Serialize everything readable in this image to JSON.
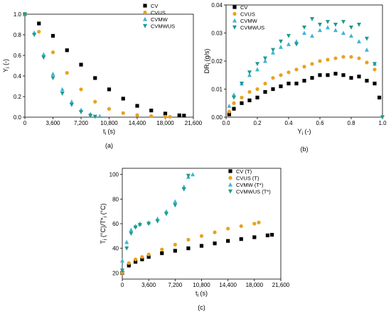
{
  "chart_data": [
    {
      "id": "a",
      "type": "scatter",
      "panel_label": "(a)",
      "xlabel": "t",
      "xlabel_sub": "i",
      "xlabel_unit": " (s)",
      "ylabel": "Y",
      "ylabel_sub": "i",
      "ylabel_unit": " (-)",
      "xlim": [
        0,
        21600
      ],
      "ylim": [
        0,
        1.0
      ],
      "xticks": [
        0,
        3600,
        7200,
        10800,
        14400,
        18000,
        21600
      ],
      "xtick_labels": [
        "0",
        "3,600",
        "7,200",
        "10,800",
        "14,400",
        "18,000",
        "21,600"
      ],
      "yticks": [
        0,
        0.2,
        0.4,
        0.6,
        0.8,
        1.0
      ],
      "ytick_labels": [
        "0.0",
        "0.2",
        "0.4",
        "0.6",
        "0.8",
        "1.0"
      ],
      "legend_position": "top-right",
      "series": [
        {
          "name": "CV",
          "marker": "square",
          "color": "#000000",
          "x": [
            0,
            1800,
            3600,
            5400,
            7200,
            9000,
            10800,
            12600,
            14400,
            16200,
            18000,
            19800,
            20400
          ],
          "y": [
            1.0,
            0.91,
            0.79,
            0.65,
            0.51,
            0.38,
            0.27,
            0.18,
            0.11,
            0.065,
            0.035,
            0.018,
            0.015
          ]
        },
        {
          "name": "CVUS",
          "marker": "circle",
          "color": "#E8A21F",
          "x": [
            0,
            1800,
            3600,
            5400,
            7200,
            9000,
            10800,
            12600,
            14400,
            16200,
            18000,
            18600
          ],
          "y": [
            1.0,
            0.83,
            0.63,
            0.43,
            0.27,
            0.15,
            0.08,
            0.04,
            0.02,
            0.01,
            0.005,
            0.004
          ]
        },
        {
          "name": "CVMW",
          "marker": "triangle-up",
          "color": "#3FB4D6",
          "x": [
            0,
            1200,
            2400,
            3600,
            4800,
            6000,
            7200,
            8400,
            9600
          ],
          "y": [
            1.0,
            0.82,
            0.61,
            0.42,
            0.27,
            0.15,
            0.07,
            0.03,
            0.01
          ]
        },
        {
          "name": "CVMWUS",
          "marker": "triangle-down",
          "color": "#1E9A8A",
          "x": [
            0,
            1200,
            2400,
            3600,
            4800,
            6000,
            7200,
            8400,
            9000
          ],
          "y": [
            1.0,
            0.8,
            0.58,
            0.38,
            0.23,
            0.12,
            0.05,
            0.015,
            0.005
          ]
        }
      ]
    },
    {
      "id": "b",
      "type": "scatter",
      "panel_label": "(b)",
      "xlabel": "Y",
      "xlabel_sub": "i",
      "xlabel_unit": " (-)",
      "ylabel": "DR",
      "ylabel_sub": "i",
      "ylabel_unit": " (g/s)",
      "xlim": [
        0,
        1.0
      ],
      "ylim": [
        0,
        0.04
      ],
      "xticks": [
        0,
        0.2,
        0.4,
        0.6,
        0.8,
        1.0
      ],
      "xtick_labels": [
        "0.0",
        "0.2",
        "0.4",
        "0.6",
        "0.8",
        "1.0"
      ],
      "yticks": [
        0,
        0.01,
        0.02,
        0.03,
        0.04
      ],
      "ytick_labels": [
        "0.00",
        "0.01",
        "0.02",
        "0.03",
        "0.04"
      ],
      "legend_position": "top-left",
      "series": [
        {
          "name": "CV",
          "marker": "square",
          "color": "#000000",
          "x": [
            0.02,
            0.05,
            0.1,
            0.15,
            0.2,
            0.25,
            0.3,
            0.35,
            0.4,
            0.45,
            0.5,
            0.55,
            0.6,
            0.65,
            0.7,
            0.75,
            0.8,
            0.85,
            0.9,
            0.95,
            0.98
          ],
          "y": [
            0.001,
            0.003,
            0.005,
            0.006,
            0.007,
            0.009,
            0.01,
            0.011,
            0.012,
            0.012,
            0.013,
            0.014,
            0.015,
            0.015,
            0.0155,
            0.015,
            0.014,
            0.0145,
            0.013,
            0.012,
            0.007
          ]
        },
        {
          "name": "CVUS",
          "marker": "circle",
          "color": "#E8A21F",
          "x": [
            0.02,
            0.05,
            0.1,
            0.15,
            0.2,
            0.25,
            0.3,
            0.35,
            0.4,
            0.45,
            0.5,
            0.55,
            0.6,
            0.65,
            0.7,
            0.75,
            0.8,
            0.85,
            0.9,
            0.95
          ],
          "y": [
            0.002,
            0.005,
            0.007,
            0.009,
            0.01,
            0.012,
            0.014,
            0.015,
            0.016,
            0.017,
            0.018,
            0.019,
            0.02,
            0.0205,
            0.021,
            0.0215,
            0.0215,
            0.021,
            0.0195,
            0.017
          ]
        },
        {
          "name": "CVMW",
          "marker": "triangle-up",
          "color": "#3FB4D6",
          "x": [
            0.02,
            0.05,
            0.1,
            0.15,
            0.2,
            0.25,
            0.3,
            0.35,
            0.4,
            0.45,
            0.5,
            0.55,
            0.6,
            0.65,
            0.7,
            0.75,
            0.8,
            0.85,
            0.9,
            0.95
          ],
          "y": [
            0.004,
            0.008,
            0.012,
            0.015,
            0.017,
            0.02,
            0.023,
            0.025,
            0.026,
            0.027,
            0.03,
            0.029,
            0.031,
            0.032,
            0.031,
            0.03,
            0.029,
            0.027,
            0.024,
            0.019
          ]
        },
        {
          "name": "CVMWUS",
          "marker": "triangle-down",
          "color": "#1E9A8A",
          "x": [
            0.05,
            0.1,
            0.15,
            0.2,
            0.25,
            0.3,
            0.35,
            0.4,
            0.45,
            0.5,
            0.55,
            0.6,
            0.65,
            0.7,
            0.75,
            0.8,
            0.85,
            0.9,
            0.95,
            1.0
          ],
          "y": [
            0.007,
            0.012,
            0.016,
            0.019,
            0.021,
            0.024,
            0.027,
            0.029,
            0.026,
            0.032,
            0.035,
            0.033,
            0.034,
            0.033,
            0.034,
            0.032,
            0.033,
            0.028,
            0.019,
            0.0
          ]
        }
      ]
    },
    {
      "id": "c",
      "type": "scatter",
      "panel_label": "(c)",
      "xlabel": "t",
      "xlabel_sub": "i",
      "xlabel_unit": " (s)",
      "ylabel": "T",
      "ylabel_sub": "i",
      "ylabel_unit": " (°C)/T*",
      "ylabel_sub2": "i",
      "ylabel_unit2": " (°C)",
      "xlim": [
        0,
        21600
      ],
      "ylim": [
        15,
        105
      ],
      "xticks": [
        0,
        3600,
        7200,
        10800,
        14400,
        18000,
        21600
      ],
      "xtick_labels": [
        "0",
        "3,600",
        "7,200",
        "10,800",
        "14,400",
        "18,000",
        "21,600"
      ],
      "yticks": [
        20,
        40,
        60,
        80,
        100
      ],
      "ytick_labels": [
        "20",
        "40",
        "60",
        "80",
        "100"
      ],
      "legend_position": "top-right",
      "series": [
        {
          "name": "CV (T)",
          "marker": "square",
          "color": "#000000",
          "x": [
            0,
            900,
            1800,
            2700,
            3600,
            5400,
            7200,
            9000,
            10800,
            12600,
            14400,
            16200,
            18000,
            19800,
            20400
          ],
          "y": [
            20,
            26,
            29,
            31,
            33,
            36,
            38,
            40,
            42,
            44,
            46,
            47.5,
            49,
            50.5,
            51
          ]
        },
        {
          "name": "CVUS (T)",
          "marker": "circle",
          "color": "#E8A21F",
          "x": [
            0,
            900,
            1800,
            2700,
            3600,
            5400,
            7200,
            9000,
            10800,
            12600,
            14400,
            16200,
            18000,
            18600
          ],
          "y": [
            20,
            28,
            31,
            33,
            35,
            39,
            43,
            47,
            50,
            53,
            56,
            58,
            60,
            61
          ]
        },
        {
          "name": "CVMW (T*)",
          "marker": "triangle-up",
          "color": "#3FB4D6",
          "x": [
            0,
            600,
            1200,
            1800,
            2400,
            3600,
            4800,
            6000,
            7200,
            8400,
            9000,
            9600
          ],
          "y": [
            30,
            45,
            55,
            58,
            60,
            61,
            64,
            70,
            78,
            90,
            98,
            100
          ]
        },
        {
          "name": "CVMWUS (T*)",
          "marker": "triangle-down",
          "color": "#1E9A8A",
          "x": [
            0,
            600,
            1200,
            1800,
            2400,
            3600,
            4800,
            6000,
            7200,
            8400,
            9000
          ],
          "y": [
            22,
            40,
            52,
            57,
            59,
            60,
            62,
            68,
            75,
            88,
            99
          ]
        }
      ]
    }
  ]
}
